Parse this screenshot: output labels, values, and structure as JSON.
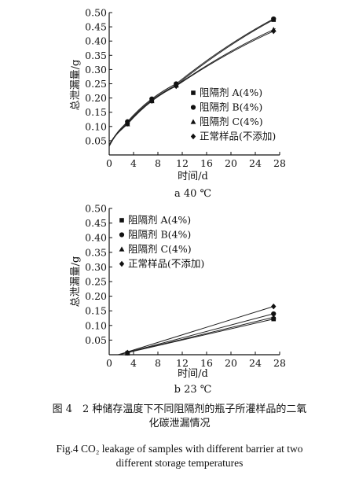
{
  "figure": {
    "caption_cn_line1": "图 4　2 种储存温度下不同阻隔剂的瓶子所灌样品的二氧",
    "caption_cn_line2": "化碳泄漏情况",
    "caption_en_line1": "Fig.4 CO₂ leakage of samples with different barrier at two",
    "caption_en_line2": "different storage temperatures"
  },
  "chart_data": [
    {
      "type": "line",
      "subtitle": "a  40 ℃",
      "xlabel": "时间/d",
      "ylabel": "总泄漏量/g",
      "xlim": [
        0,
        28
      ],
      "ylim": [
        0,
        0.5
      ],
      "xticks": [
        "0",
        "4",
        "8",
        "12",
        "16",
        "20",
        "24",
        "28"
      ],
      "yticks": [
        "0.05",
        "0.10",
        "0.15",
        "0.20",
        "0.25",
        "0.30",
        "0.35",
        "0.40",
        "0.45",
        "0.50"
      ],
      "legend_position": "right",
      "grid": false,
      "series": [
        {
          "name": "阻隔剂 A(4%)",
          "marker": "square",
          "x": [
            3,
            7,
            11,
            27
          ],
          "y": [
            0.113,
            0.193,
            0.245,
            0.475
          ]
        },
        {
          "name": "阻隔剂 B(4%)",
          "marker": "circle",
          "x": [
            3,
            7,
            11,
            27
          ],
          "y": [
            0.117,
            0.197,
            0.25,
            0.478
          ]
        },
        {
          "name": "阻隔剂 C(4%)",
          "marker": "triangle",
          "x": [
            3,
            7,
            11,
            27
          ],
          "y": [
            0.108,
            0.189,
            0.244,
            0.44
          ]
        },
        {
          "name": "正常样品(不添加)",
          "marker": "diamond",
          "x": [
            3,
            7,
            11,
            27
          ],
          "y": [
            0.11,
            0.19,
            0.242,
            0.435
          ]
        }
      ]
    },
    {
      "type": "line",
      "subtitle": "b  23 ℃",
      "xlabel": "时间/d",
      "ylabel": "总泄漏量/g",
      "xlim": [
        0,
        28
      ],
      "ylim": [
        0,
        0.5
      ],
      "xticks": [
        "0",
        "4",
        "8",
        "12",
        "16",
        "20",
        "24",
        "28"
      ],
      "yticks": [
        "0.05",
        "0.10",
        "0.15",
        "0.20",
        "0.25",
        "0.30",
        "0.35",
        "0.40",
        "0.45",
        "0.50"
      ],
      "legend_position": "top-left",
      "grid": false,
      "series": [
        {
          "name": "阻隔剂 A(4%)",
          "marker": "square",
          "x": [
            3,
            27
          ],
          "y": [
            0.005,
            0.122
          ]
        },
        {
          "name": "阻隔剂 B(4%)",
          "marker": "circle",
          "x": [
            3,
            27
          ],
          "y": [
            0.006,
            0.14
          ]
        },
        {
          "name": "阻隔剂 C(4%)",
          "marker": "triangle",
          "x": [
            3,
            27
          ],
          "y": [
            0.005,
            0.128
          ]
        },
        {
          "name": "正常样品(不添加)",
          "marker": "diamond",
          "x": [
            3,
            27
          ],
          "y": [
            0.007,
            0.165
          ]
        }
      ]
    }
  ]
}
